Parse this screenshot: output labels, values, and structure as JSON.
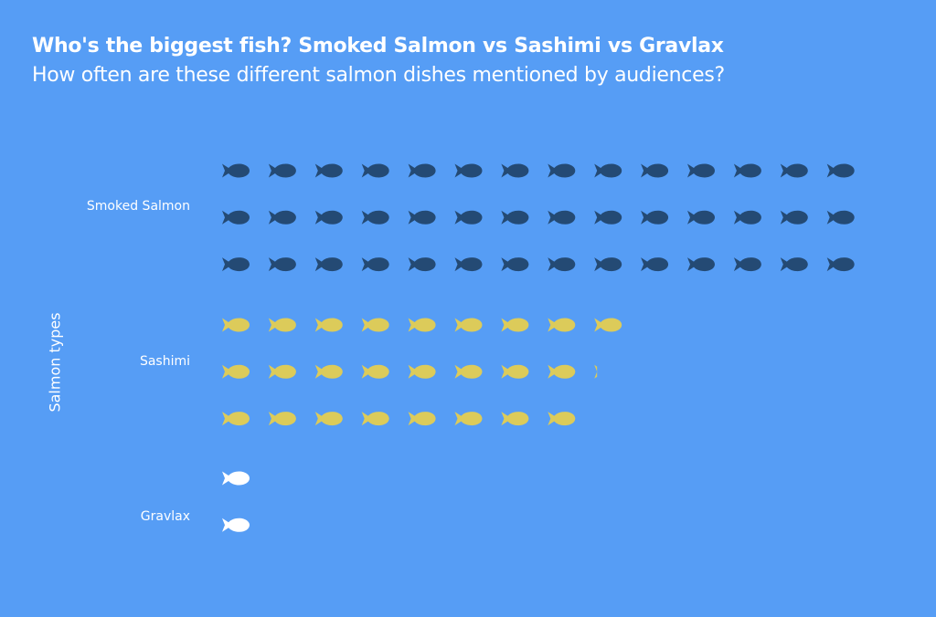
{
  "chart_data": {
    "type": "pictogram",
    "title": "Who's the biggest fish? Smoked Salmon vs Sashimi vs Gravlax",
    "subtitle": "How often are these different salmon dishes mentioned by audiences?",
    "ylabel": "Salmon types",
    "icon": "fish-icon",
    "rows_per_category": 3,
    "fill_order": "column-major",
    "categories": [
      "Smoked Salmon",
      "Sashimi",
      "Gravlax"
    ],
    "values": [
      42,
      25.1,
      2
    ],
    "colors": [
      "#244a74",
      "#dccb5a",
      "#ffffff"
    ],
    "background": "#569df5"
  }
}
